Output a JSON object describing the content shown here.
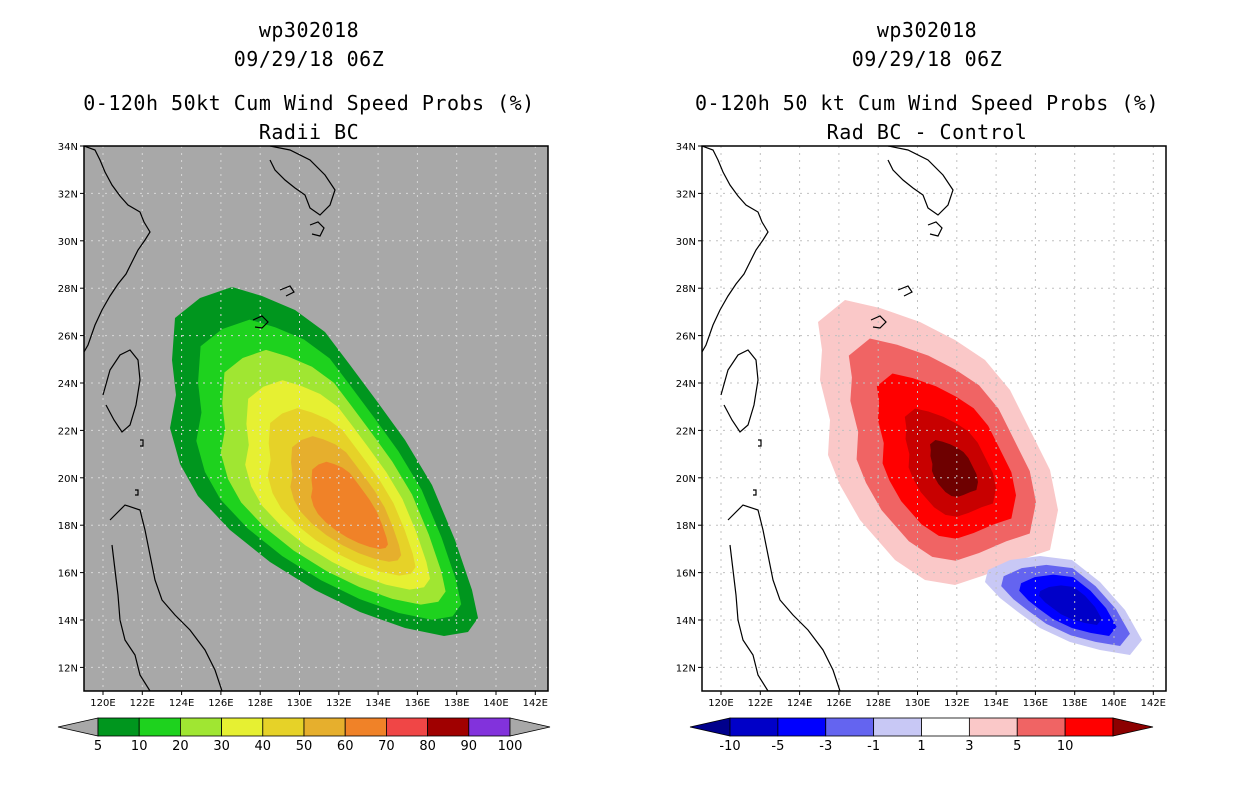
{
  "left": {
    "line1": "wp302018",
    "line2": "09/29/18 06Z",
    "line3": "0-120h 50kt Cum Wind Speed Probs (%)",
    "line4": "Radii BC",
    "lat_labels": [
      "34N",
      "32N",
      "30N",
      "28N",
      "26N",
      "24N",
      "22N",
      "20N",
      "18N",
      "16N",
      "14N",
      "12N"
    ],
    "lon_labels": [
      "120E",
      "122E",
      "124E",
      "126E",
      "128E",
      "130E",
      "132E",
      "134E",
      "136E",
      "138E",
      "140E",
      "142E"
    ],
    "colorbar": {
      "labels": [
        "5",
        "10",
        "20",
        "30",
        "40",
        "50",
        "60",
        "70",
        "80",
        "90",
        "100"
      ],
      "colors": [
        "#00961e",
        "#1ed21e",
        "#a0e632",
        "#e6f032",
        "#e6d228",
        "#e6af2d",
        "#f08228",
        "#f04646",
        "#a00000",
        "#8232dc"
      ],
      "arrow_color": "#a8a8a8"
    },
    "background_color": "#a8a8a8"
  },
  "right": {
    "line1": "wp302018",
    "line2": "09/29/18 06Z",
    "line3": "0-120h 50 kt Cum Wind Speed Probs (%)",
    "line4": "Rad BC - Control",
    "lat_labels": [
      "34N",
      "32N",
      "30N",
      "28N",
      "26N",
      "24N",
      "22N",
      "20N",
      "18N",
      "16N",
      "14N",
      "12N"
    ],
    "lon_labels": [
      "120E",
      "122E",
      "124E",
      "126E",
      "128E",
      "130E",
      "132E",
      "134E",
      "136E",
      "138E",
      "140E",
      "142E"
    ],
    "colorbar": {
      "labels": [
        "-10",
        "-5",
        "-3",
        "-1",
        "1",
        "3",
        "5",
        "10"
      ],
      "colors": [
        "#0000c8",
        "#0000ff",
        "#6464f0",
        "#c8c8f5",
        "#ffffff",
        "#fac8c8",
        "#f06464",
        "#ff0000"
      ],
      "left_arrow_color": "#00008c",
      "right_arrow_color": "#8c0000"
    },
    "background_color": "#ffffff"
  }
}
